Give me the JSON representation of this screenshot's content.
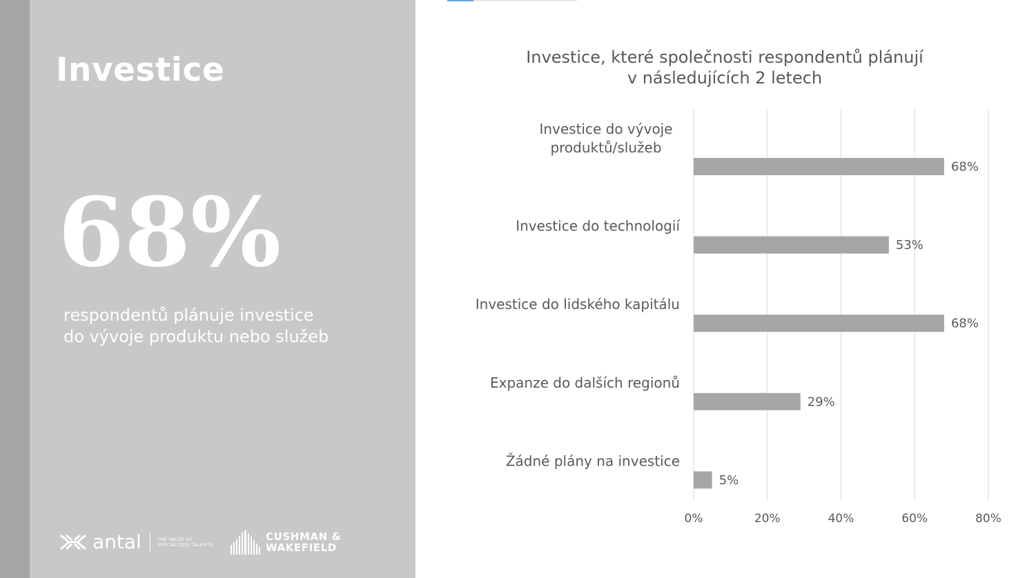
{
  "left_panel": {
    "title": "Investice",
    "big_stat": "68%",
    "caption_lines": [
      "respondentů plánuje investice",
      "do vývoje produktu nebo služeb"
    ]
  },
  "logos": {
    "antal": {
      "name": "antal",
      "tagline_lines": [
        "THE VALUE OF",
        "SPECIALIZED TALENTS"
      ],
      "icon": "antal-logo-icon"
    },
    "cushman": {
      "lines": [
        "CUSHMAN &",
        "WAKEFIELD"
      ],
      "icon": "cushman-wakefield-logo-icon"
    }
  },
  "colors": {
    "left_panel": "#c8c8c8",
    "left_strip": "#a6a6a6",
    "bar": "#a6a6a6",
    "gridline": "#d9d9d9",
    "text": "#595959",
    "accent": "#6f9fd8"
  },
  "chart_data": {
    "type": "bar",
    "orientation": "horizontal",
    "title_lines": [
      "Investice, které společnosti respondentů plánují",
      "v následujících 2 letech"
    ],
    "categories": [
      [
        "Investice do vývoje",
        "produktů/služeb"
      ],
      [
        "Investice do technologií"
      ],
      [
        "Investice do lidského kapitálu"
      ],
      [
        "Expanze do dalších regionů"
      ],
      [
        "Žádné plány na investice"
      ]
    ],
    "values": [
      68,
      53,
      68,
      29,
      5
    ],
    "data_labels": [
      "68%",
      "53%",
      "68%",
      "29%",
      "5%"
    ],
    "xlim": [
      0,
      80
    ],
    "xticks": [
      0,
      20,
      40,
      60,
      80
    ],
    "xtick_labels": [
      "0%",
      "20%",
      "40%",
      "60%",
      "80%"
    ],
    "grid": true,
    "legend": "none"
  }
}
